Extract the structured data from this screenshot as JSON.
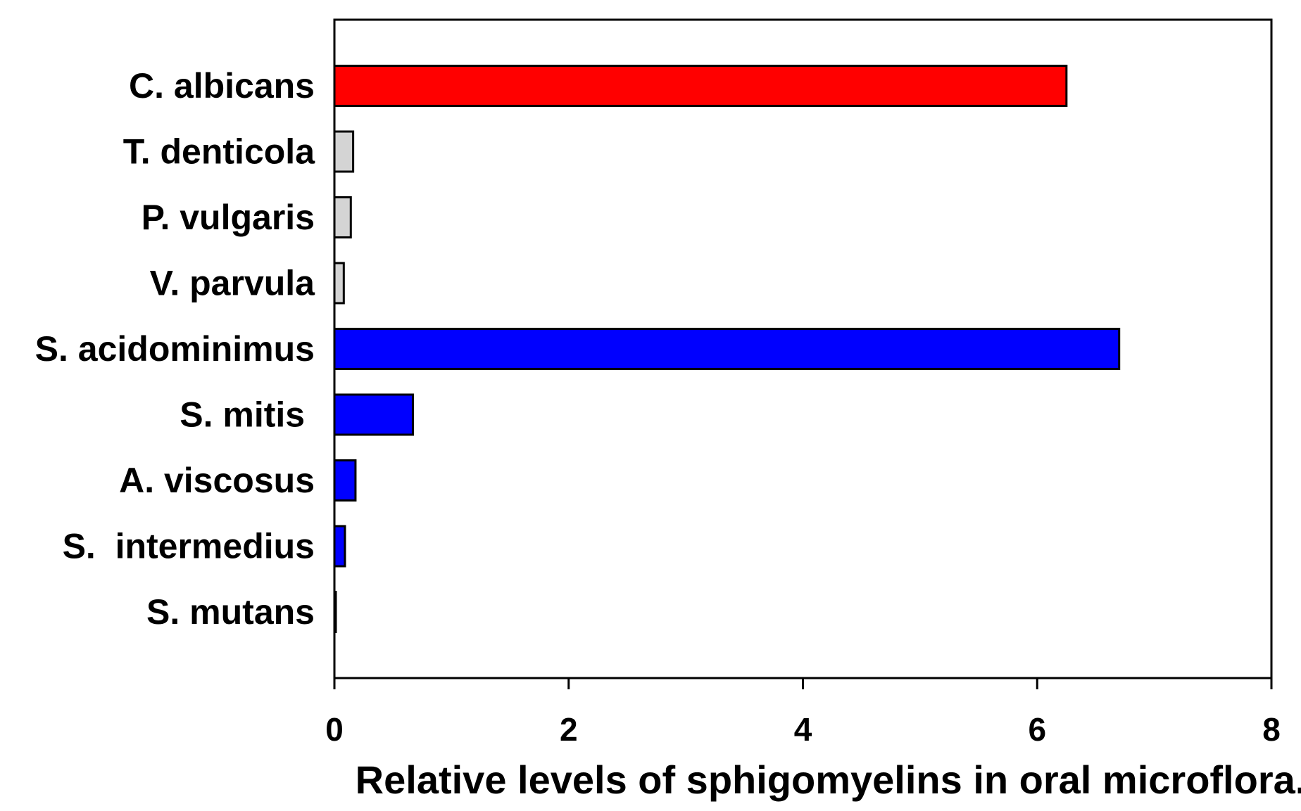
{
  "chart_data": {
    "type": "bar",
    "orientation": "horizontal",
    "categories": [
      "C. albicans",
      "T. denticola",
      "P. vulgaris",
      "V. parvula",
      "S. acidominimus",
      "S. mitis ",
      "A. viscosus",
      "S.  intermedius",
      "S. mutans"
    ],
    "values": [
      6.25,
      0.16,
      0.14,
      0.08,
      6.7,
      0.67,
      0.18,
      0.09,
      0.01
    ],
    "bar_colors": [
      "#ff0000",
      "#d4d4d4",
      "#d4d4d4",
      "#d4d4d4",
      "#0000ff",
      "#0000ff",
      "#0000ff",
      "#0000ff",
      "#0000ff"
    ],
    "xlabel": "Relative levels of sphigomyelins in oral microflora.",
    "ylabel": "",
    "title": "",
    "xlim": [
      0,
      8
    ],
    "xticks": [
      "0",
      "2",
      "4",
      "6",
      "8"
    ],
    "grid": false,
    "legend": "none"
  }
}
